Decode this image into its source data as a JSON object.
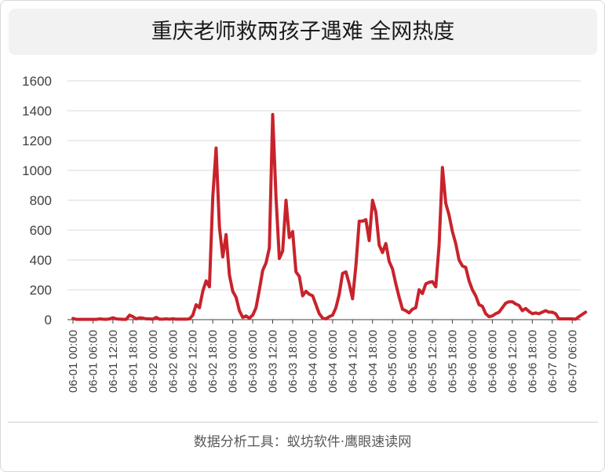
{
  "chart_data": {
    "type": "line",
    "title": "重庆老师救两孩子遇难 全网热度",
    "xlabel": "",
    "ylabel": "",
    "ylim": [
      0,
      1600
    ],
    "yticks": [
      0,
      200,
      400,
      600,
      800,
      1000,
      1200,
      1400,
      1600
    ],
    "grid": true,
    "legend": "none",
    "line_color": "#c8232c",
    "x_tick_labels": [
      "06-01 00:00",
      "06-01 06:00",
      "06-01 12:00",
      "06-01 18:00",
      "06-02 00:00",
      "06-02 06:00",
      "06-02 12:00",
      "06-02 18:00",
      "06-03 00:00",
      "06-03 06:00",
      "06-03 12:00",
      "06-03 18:00",
      "06-04 00:00",
      "06-04 06:00",
      "06-04 12:00",
      "06-04 18:00",
      "06-05 00:00",
      "06-05 06:00",
      "06-05 12:00",
      "06-05 18:00",
      "06-06 00:00",
      "06-06 06:00",
      "06-06 12:00",
      "06-06 18:00",
      "06-07 00:00",
      "06-07 06:00"
    ],
    "x_start": "06-01 00:00",
    "x_step_hours": 1,
    "values": [
      8,
      2,
      2,
      2,
      2,
      2,
      2,
      2,
      5,
      3,
      2,
      5,
      12,
      5,
      3,
      2,
      2,
      30,
      20,
      5,
      12,
      10,
      5,
      5,
      3,
      15,
      3,
      3,
      5,
      3,
      6,
      3,
      3,
      3,
      3,
      5,
      30,
      100,
      80,
      190,
      260,
      220,
      820,
      1150,
      620,
      420,
      570,
      300,
      190,
      150,
      60,
      15,
      25,
      10,
      30,
      80,
      200,
      330,
      380,
      480,
      1375,
      820,
      410,
      460,
      800,
      550,
      590,
      320,
      290,
      160,
      190,
      170,
      160,
      100,
      40,
      10,
      5,
      20,
      30,
      80,
      170,
      310,
      320,
      240,
      140,
      360,
      660,
      660,
      670,
      530,
      800,
      720,
      500,
      450,
      510,
      390,
      340,
      240,
      150,
      70,
      60,
      45,
      70,
      80,
      200,
      175,
      240,
      250,
      255,
      220,
      500,
      1020,
      780,
      700,
      590,
      510,
      400,
      360,
      350,
      260,
      200,
      160,
      100,
      90,
      40,
      20,
      25,
      40,
      50,
      80,
      110,
      120,
      120,
      105,
      95,
      60,
      75,
      55,
      40,
      45,
      40,
      50,
      60,
      50,
      50,
      40,
      5,
      5,
      5,
      5,
      5,
      3,
      20,
      35,
      50
    ]
  },
  "footer": "数据分析工具：蚁坊软件·鹰眼速读网"
}
